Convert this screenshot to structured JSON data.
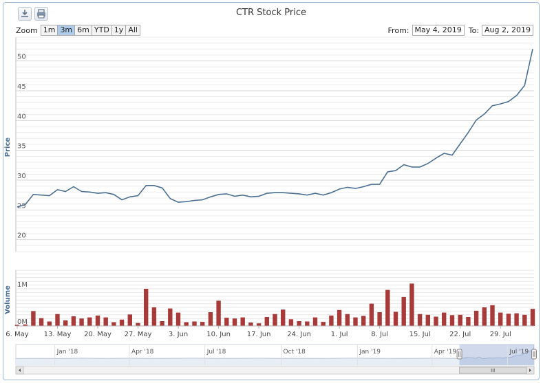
{
  "title": "CTR Stock Price",
  "toolbar": {
    "download_icon": "download-icon",
    "print_icon": "print-icon"
  },
  "zoom": {
    "label": "Zoom",
    "buttons": [
      "1m",
      "3m",
      "6m",
      "YTD",
      "1y",
      "All"
    ],
    "selected": "3m"
  },
  "range": {
    "from_label": "From:",
    "from_value": "May 4, 2019",
    "to_label": "To:",
    "to_value": "Aug 2, 2019"
  },
  "colors": {
    "line": "#4a6f92",
    "volume": "#a83a3a",
    "navigator": "#b9c6d6"
  },
  "chart_data": {
    "type": "line",
    "price": {
      "ylabel": "Price",
      "ylim": [
        18,
        54
      ],
      "yticks": [
        20,
        25,
        30,
        35,
        40,
        45,
        50
      ],
      "x": [
        "2019-05-06",
        "2019-05-07",
        "2019-05-08",
        "2019-05-09",
        "2019-05-10",
        "2019-05-13",
        "2019-05-14",
        "2019-05-15",
        "2019-05-16",
        "2019-05-17",
        "2019-05-20",
        "2019-05-21",
        "2019-05-22",
        "2019-05-23",
        "2019-05-24",
        "2019-05-27",
        "2019-05-28",
        "2019-05-29",
        "2019-05-30",
        "2019-05-31",
        "2019-06-03",
        "2019-06-04",
        "2019-06-05",
        "2019-06-06",
        "2019-06-07",
        "2019-06-10",
        "2019-06-11",
        "2019-06-12",
        "2019-06-13",
        "2019-06-14",
        "2019-06-17",
        "2019-06-18",
        "2019-06-19",
        "2019-06-20",
        "2019-06-21",
        "2019-06-24",
        "2019-06-25",
        "2019-06-26",
        "2019-06-27",
        "2019-06-28",
        "2019-07-01",
        "2019-07-02",
        "2019-07-03",
        "2019-07-04",
        "2019-07-05",
        "2019-07-08",
        "2019-07-09",
        "2019-07-10",
        "2019-07-11",
        "2019-07-12",
        "2019-07-15",
        "2019-07-16",
        "2019-07-17",
        "2019-07-18",
        "2019-07-19",
        "2019-07-22",
        "2019-07-23",
        "2019-07-24",
        "2019-07-25",
        "2019-07-26",
        "2019-07-29",
        "2019-07-30",
        "2019-07-31",
        "2019-08-01",
        "2019-08-02"
      ],
      "values": [
        25.5,
        25.9,
        27.6,
        27.5,
        27.4,
        28.4,
        28.1,
        28.9,
        28.1,
        28.0,
        27.8,
        27.9,
        27.6,
        26.7,
        27.2,
        27.4,
        29.1,
        29.1,
        28.7,
        26.9,
        26.3,
        26.4,
        26.6,
        26.7,
        27.2,
        27.6,
        27.7,
        27.3,
        27.5,
        27.2,
        27.3,
        27.8,
        27.9,
        27.9,
        27.8,
        27.7,
        27.5,
        27.8,
        27.5,
        27.9,
        28.5,
        28.8,
        28.6,
        28.9,
        29.3,
        29.3,
        31.4,
        31.6,
        32.6,
        32.2,
        32.2,
        32.8,
        33.7,
        34.5,
        34.2,
        36.1,
        38.0,
        40.1,
        41.1,
        42.5,
        42.8,
        43.2,
        44.2,
        45.9,
        52.0
      ]
    },
    "volume": {
      "ylabel": "Volume",
      "yticks": [
        {
          "value": 0,
          "label": "0M"
        },
        {
          "value": 1000000,
          "label": "1M"
        }
      ],
      "ylim": [
        0,
        1500000
      ],
      "values": [
        30000,
        40000,
        400000,
        210000,
        120000,
        320000,
        150000,
        260000,
        200000,
        230000,
        280000,
        230000,
        100000,
        170000,
        310000,
        80000,
        1000000,
        500000,
        130000,
        470000,
        360000,
        100000,
        120000,
        110000,
        370000,
        680000,
        220000,
        200000,
        230000,
        90000,
        70000,
        240000,
        320000,
        440000,
        180000,
        130000,
        120000,
        230000,
        110000,
        280000,
        430000,
        320000,
        230000,
        270000,
        600000,
        370000,
        970000,
        380000,
        780000,
        1140000,
        320000,
        300000,
        250000,
        360000,
        290000,
        300000,
        240000,
        410000,
        500000,
        560000,
        360000,
        330000,
        340000,
        300000,
        460000
      ]
    },
    "xticks": [
      {
        "date": "2019-05-06",
        "label": "6. May"
      },
      {
        "date": "2019-05-13",
        "label": "13. May"
      },
      {
        "date": "2019-05-20",
        "label": "20. May"
      },
      {
        "date": "2019-05-27",
        "label": "27. May"
      },
      {
        "date": "2019-06-03",
        "label": "3. Jun"
      },
      {
        "date": "2019-06-10",
        "label": "10. Jun"
      },
      {
        "date": "2019-06-17",
        "label": "17. Jun"
      },
      {
        "date": "2019-06-24",
        "label": "24. Jun"
      },
      {
        "date": "2019-07-01",
        "label": "1. Jul"
      },
      {
        "date": "2019-07-08",
        "label": "8. Jul"
      },
      {
        "date": "2019-07-15",
        "label": "15. Jul"
      },
      {
        "date": "2019-07-22",
        "label": "22. Jul"
      },
      {
        "date": "2019-07-29",
        "label": "29. Jul"
      }
    ],
    "navigator": {
      "start": "2017-11-15",
      "end": "2019-08-02",
      "labels": [
        {
          "date": "2018-01-01",
          "label": "Jan '18"
        },
        {
          "date": "2018-04-01",
          "label": "Apr '18"
        },
        {
          "date": "2018-07-01",
          "label": "Jul '18"
        },
        {
          "date": "2018-10-01",
          "label": "Oct '18"
        },
        {
          "date": "2019-01-01",
          "label": "Jan '19"
        },
        {
          "date": "2019-04-01",
          "label": "Apr '19"
        },
        {
          "date": "2019-07-01",
          "label": "Jul '19"
        }
      ],
      "selection": [
        "2019-05-04",
        "2019-08-02"
      ]
    },
    "grid": true,
    "legend": "none"
  }
}
